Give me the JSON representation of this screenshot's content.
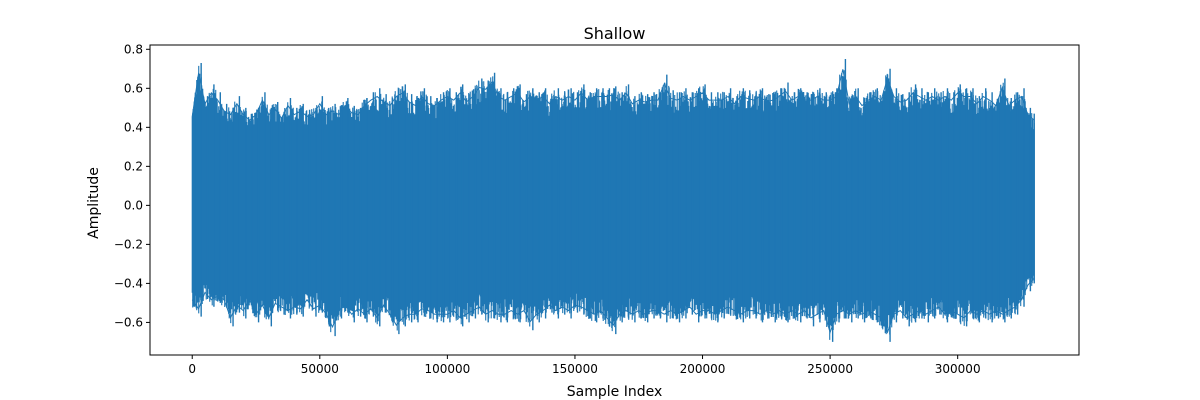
{
  "chart_data": {
    "type": "line",
    "title": "Shallow",
    "xlabel": "Sample Index",
    "ylabel": "Amplitude",
    "xlim": [
      -16550,
      347550
    ],
    "ylim": [
      -0.767,
      0.822
    ],
    "x_ticks": [
      0,
      50000,
      100000,
      150000,
      200000,
      250000,
      300000
    ],
    "y_ticks": [
      -0.6,
      -0.4,
      -0.2,
      0.0,
      0.2,
      0.4,
      0.6,
      0.8
    ],
    "x_tick_labels": [
      "0",
      "50000",
      "100000",
      "150000",
      "200000",
      "250000",
      "300000"
    ],
    "y_tick_labels": [
      "−0.6",
      "−0.4",
      "−0.2",
      "0.0",
      "0.2",
      "0.4",
      "0.6",
      "0.8"
    ],
    "grid": false,
    "series": [
      {
        "color": "#1f77b4",
        "sample_count": 331000,
        "envelope_step": 2500,
        "envelope_x": [
          0,
          2500,
          5000,
          7500,
          10000,
          12500,
          15000,
          17500,
          20000,
          22500,
          25000,
          27500,
          30000,
          32500,
          35000,
          37500,
          40000,
          42500,
          45000,
          47500,
          50000,
          52500,
          55000,
          57500,
          60000,
          62500,
          65000,
          67500,
          70000,
          72500,
          75000,
          77500,
          80000,
          82500,
          85000,
          87500,
          90000,
          92500,
          95000,
          97500,
          100000,
          102500,
          105000,
          107500,
          110000,
          112500,
          115000,
          117500,
          120000,
          122500,
          125000,
          127500,
          130000,
          132500,
          135000,
          137500,
          140000,
          142500,
          145000,
          147500,
          150000,
          152500,
          155000,
          157500,
          160000,
          162500,
          165000,
          167500,
          170000,
          172500,
          175000,
          177500,
          180000,
          182500,
          185000,
          187500,
          190000,
          192500,
          195000,
          197500,
          200000,
          202500,
          205000,
          207500,
          210000,
          212500,
          215000,
          217500,
          220000,
          222500,
          225000,
          227500,
          230000,
          232500,
          235000,
          237500,
          240000,
          242500,
          245000,
          247500,
          250000,
          252500,
          255000,
          257500,
          260000,
          262500,
          265000,
          267500,
          270000,
          272500,
          275000,
          277500,
          280000,
          282500,
          285000,
          287500,
          290000,
          292500,
          295000,
          297500,
          300000,
          302500,
          305000,
          307500,
          310000,
          312500,
          315000,
          317500,
          320000,
          322500,
          325000,
          327500,
          330000
        ],
        "envelope_max": [
          0.49,
          0.73,
          0.56,
          0.62,
          0.58,
          0.52,
          0.5,
          0.56,
          0.5,
          0.47,
          0.5,
          0.58,
          0.5,
          0.53,
          0.48,
          0.55,
          0.5,
          0.52,
          0.49,
          0.5,
          0.56,
          0.5,
          0.52,
          0.5,
          0.55,
          0.51,
          0.5,
          0.55,
          0.58,
          0.6,
          0.57,
          0.55,
          0.6,
          0.62,
          0.57,
          0.55,
          0.6,
          0.56,
          0.55,
          0.58,
          0.6,
          0.58,
          0.62,
          0.57,
          0.6,
          0.65,
          0.64,
          0.68,
          0.6,
          0.58,
          0.6,
          0.62,
          0.57,
          0.6,
          0.58,
          0.6,
          0.56,
          0.6,
          0.58,
          0.6,
          0.58,
          0.62,
          0.58,
          0.6,
          0.6,
          0.6,
          0.61,
          0.58,
          0.62,
          0.56,
          0.58,
          0.57,
          0.58,
          0.58,
          0.67,
          0.59,
          0.58,
          0.6,
          0.58,
          0.6,
          0.62,
          0.58,
          0.58,
          0.58,
          0.6,
          0.56,
          0.6,
          0.59,
          0.58,
          0.6,
          0.57,
          0.58,
          0.6,
          0.63,
          0.58,
          0.6,
          0.58,
          0.58,
          0.6,
          0.58,
          0.58,
          0.6,
          0.75,
          0.56,
          0.6,
          0.55,
          0.58,
          0.6,
          0.58,
          0.7,
          0.6,
          0.57,
          0.58,
          0.62,
          0.6,
          0.58,
          0.6,
          0.58,
          0.6,
          0.58,
          0.62,
          0.6,
          0.6,
          0.56,
          0.6,
          0.58,
          0.55,
          0.65,
          0.55,
          0.58,
          0.6,
          0.5,
          0.47,
          0.48
        ],
        "envelope_min": [
          -0.52,
          -0.57,
          -0.48,
          -0.52,
          -0.5,
          -0.52,
          -0.62,
          -0.55,
          -0.58,
          -0.52,
          -0.6,
          -0.55,
          -0.62,
          -0.54,
          -0.56,
          -0.58,
          -0.56,
          -0.57,
          -0.52,
          -0.57,
          -0.55,
          -0.6,
          -0.67,
          -0.58,
          -0.55,
          -0.6,
          -0.57,
          -0.6,
          -0.57,
          -0.62,
          -0.55,
          -0.6,
          -0.66,
          -0.62,
          -0.6,
          -0.6,
          -0.57,
          -0.58,
          -0.6,
          -0.6,
          -0.6,
          -0.58,
          -0.62,
          -0.6,
          -0.58,
          -0.56,
          -0.6,
          -0.58,
          -0.6,
          -0.6,
          -0.58,
          -0.6,
          -0.58,
          -0.64,
          -0.6,
          -0.58,
          -0.55,
          -0.58,
          -0.56,
          -0.58,
          -0.55,
          -0.56,
          -0.58,
          -0.6,
          -0.58,
          -0.62,
          -0.66,
          -0.6,
          -0.58,
          -0.6,
          -0.58,
          -0.6,
          -0.58,
          -0.58,
          -0.6,
          -0.58,
          -0.6,
          -0.58,
          -0.56,
          -0.6,
          -0.58,
          -0.58,
          -0.6,
          -0.58,
          -0.56,
          -0.58,
          -0.6,
          -0.58,
          -0.58,
          -0.6,
          -0.58,
          -0.6,
          -0.58,
          -0.6,
          -0.58,
          -0.6,
          -0.58,
          -0.62,
          -0.6,
          -0.58,
          -0.7,
          -0.6,
          -0.58,
          -0.6,
          -0.58,
          -0.6,
          -0.58,
          -0.6,
          -0.62,
          -0.7,
          -0.6,
          -0.58,
          -0.62,
          -0.6,
          -0.58,
          -0.6,
          -0.58,
          -0.56,
          -0.6,
          -0.58,
          -0.6,
          -0.62,
          -0.58,
          -0.6,
          -0.58,
          -0.6,
          -0.58,
          -0.6,
          -0.58,
          -0.56,
          -0.52,
          -0.44,
          -0.4
        ]
      }
    ]
  }
}
